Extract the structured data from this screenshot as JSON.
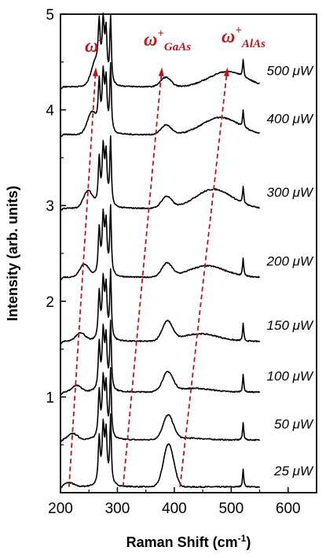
{
  "chart_data": {
    "type": "line",
    "xlabel": "Raman Shift (cm",
    "xlabel_sup": "-1",
    "xlabel_tail": ")",
    "ylabel": "Intensity (arb. units)",
    "xlim": [
      200,
      650
    ],
    "ylim": [
      0,
      5
    ],
    "xticks": [
      200,
      300,
      400,
      500,
      600
    ],
    "yticks": [
      1,
      2,
      3,
      4,
      5
    ],
    "series": [
      {
        "name": "25 µW",
        "label": "25 μW",
        "offset": 0.06,
        "ga": 0.45,
        "aa": 0.0,
        "base": 0.02
      },
      {
        "name": "50 µW",
        "label": "50 μW",
        "offset": 0.55,
        "ga": 0.25,
        "aa": 0.02,
        "base": 0.03
      },
      {
        "name": "100 µW",
        "label": "100 μW",
        "offset": 1.05,
        "ga": 0.2,
        "aa": 0.04,
        "base": 0.03
      },
      {
        "name": "150 µW",
        "label": "150 μW",
        "offset": 1.58,
        "ga": 0.2,
        "aa": 0.08,
        "base": 0.04
      },
      {
        "name": "200 µW",
        "label": "200 μW",
        "offset": 2.25,
        "ga": 0.14,
        "aa": 0.12,
        "base": 0.06
      },
      {
        "name": "300 µW",
        "label": "300 μW",
        "offset": 2.97,
        "ga": 0.12,
        "aa": 0.2,
        "base": 0.08
      },
      {
        "name": "400 µW",
        "label": "400 μW",
        "offset": 3.74,
        "ga": 0.1,
        "aa": 0.18,
        "base": 0.1
      },
      {
        "name": "500 µW",
        "label": "500 μW",
        "offset": 4.24,
        "ga": 0.1,
        "aa": 0.16,
        "base": 0.11
      }
    ],
    "guides": [
      {
        "name": "ω-",
        "points": [
          [
            215,
            0.06
          ],
          [
            262,
            4.42
          ]
        ]
      },
      {
        "name": "ω+ GaAs",
        "points": [
          [
            310,
            0.06
          ],
          [
            378,
            4.42
          ]
        ]
      },
      {
        "name": "ω+ AlAs",
        "points": [
          [
            410,
            0.06
          ],
          [
            493,
            4.42
          ]
        ]
      }
    ],
    "annotations": [
      {
        "base": "ω",
        "sup": "-",
        "sub": ""
      },
      {
        "base": "ω",
        "sup": "+",
        "sub": "GaAs"
      },
      {
        "base": "ω",
        "sup": "+",
        "sub": "AlAs"
      }
    ],
    "grid": false,
    "colors": {
      "spectra": "#000000",
      "guides": "#c0141c"
    }
  }
}
